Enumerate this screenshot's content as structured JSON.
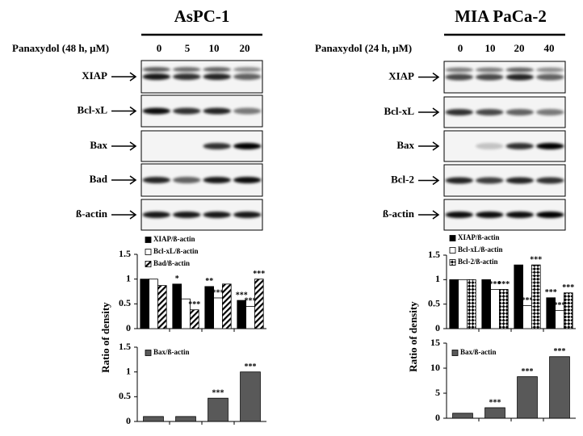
{
  "panels": [
    {
      "title": "AsPC-1",
      "treatment": "Panaxydol (48 h, μM)",
      "doses": [
        "0",
        "5",
        "10",
        "20"
      ],
      "blots": [
        "XIAP",
        "Bcl-xL",
        "Bax",
        "Bad",
        "ß-actin"
      ]
    },
    {
      "title": "MIA PaCa-2",
      "treatment": "Panaxydol (24 h, μM)",
      "doses": [
        "0",
        "10",
        "20",
        "40"
      ],
      "blots": [
        "XIAP",
        "Bcl-xL",
        "Bax",
        "Bcl-2",
        "ß-actin"
      ]
    }
  ],
  "chart_data": [
    {
      "type": "bar",
      "y_label": "Ratio of density",
      "categories": [
        null,
        null,
        null,
        null
      ],
      "ylim": [
        0,
        1.5
      ],
      "yticks": [
        0,
        0.5,
        1,
        1.5
      ],
      "series": [
        {
          "name": "XIAP/ß-actin",
          "color": "#000000",
          "pattern": "solid",
          "values": [
            1,
            0.9,
            0.85,
            0.57
          ],
          "stars": [
            null,
            "*",
            "**",
            "***"
          ]
        },
        {
          "name": "Bcl-xL/ß-actin",
          "color": "#ffffff",
          "pattern": "solid",
          "values": [
            1,
            0.6,
            0.62,
            0.45
          ],
          "stars": [
            null,
            null,
            "***",
            "***"
          ]
        },
        {
          "name": "Bad/ß-actin",
          "color": "#000000",
          "pattern": "hatch",
          "values": [
            0.87,
            0.38,
            0.9,
            1.0
          ],
          "stars": [
            null,
            "***",
            null,
            "***"
          ]
        }
      ]
    },
    {
      "type": "bar",
      "categories": [
        null,
        null,
        null,
        null
      ],
      "ylim": [
        0,
        1.5
      ],
      "yticks": [
        0,
        0.5,
        1,
        1.5
      ],
      "series": [
        {
          "name": "Bax/ß-actin",
          "color": "#595959",
          "pattern": "solid",
          "values": [
            0.1,
            0.1,
            0.47,
            1.0
          ],
          "stars": [
            null,
            null,
            "***",
            "***"
          ]
        }
      ]
    },
    {
      "type": "bar",
      "y_label": "Ratio of density",
      "categories": [
        null,
        null,
        null,
        null
      ],
      "ylim": [
        0,
        1.5
      ],
      "yticks": [
        0,
        0.5,
        1,
        1.5
      ],
      "series": [
        {
          "name": "XIAP/ß-actin",
          "color": "#000000",
          "pattern": "solid",
          "values": [
            1,
            1,
            1.3,
            0.63
          ],
          "stars": [
            null,
            null,
            null,
            "***"
          ]
        },
        {
          "name": "Bcl-xL/ß-actin",
          "color": "#ffffff",
          "pattern": "solid",
          "values": [
            1,
            0.8,
            0.47,
            0.37
          ],
          "stars": [
            null,
            "***",
            "***",
            "***"
          ]
        },
        {
          "name": "Bcl-2/ß-actin",
          "color": "#000000",
          "pattern": "diamond",
          "values": [
            1,
            0.8,
            1.3,
            0.73
          ],
          "stars": [
            null,
            "***",
            "***",
            "***"
          ]
        }
      ]
    },
    {
      "type": "bar",
      "categories": [
        null,
        null,
        null,
        null
      ],
      "ylim": [
        0,
        15
      ],
      "yticks": [
        0,
        5,
        10,
        15
      ],
      "series": [
        {
          "name": "Bax/ß-actin",
          "color": "#595959",
          "pattern": "solid",
          "values": [
            1,
            2.1,
            8.3,
            12.3
          ],
          "stars": [
            null,
            "***",
            "***",
            "***"
          ]
        }
      ]
    }
  ]
}
